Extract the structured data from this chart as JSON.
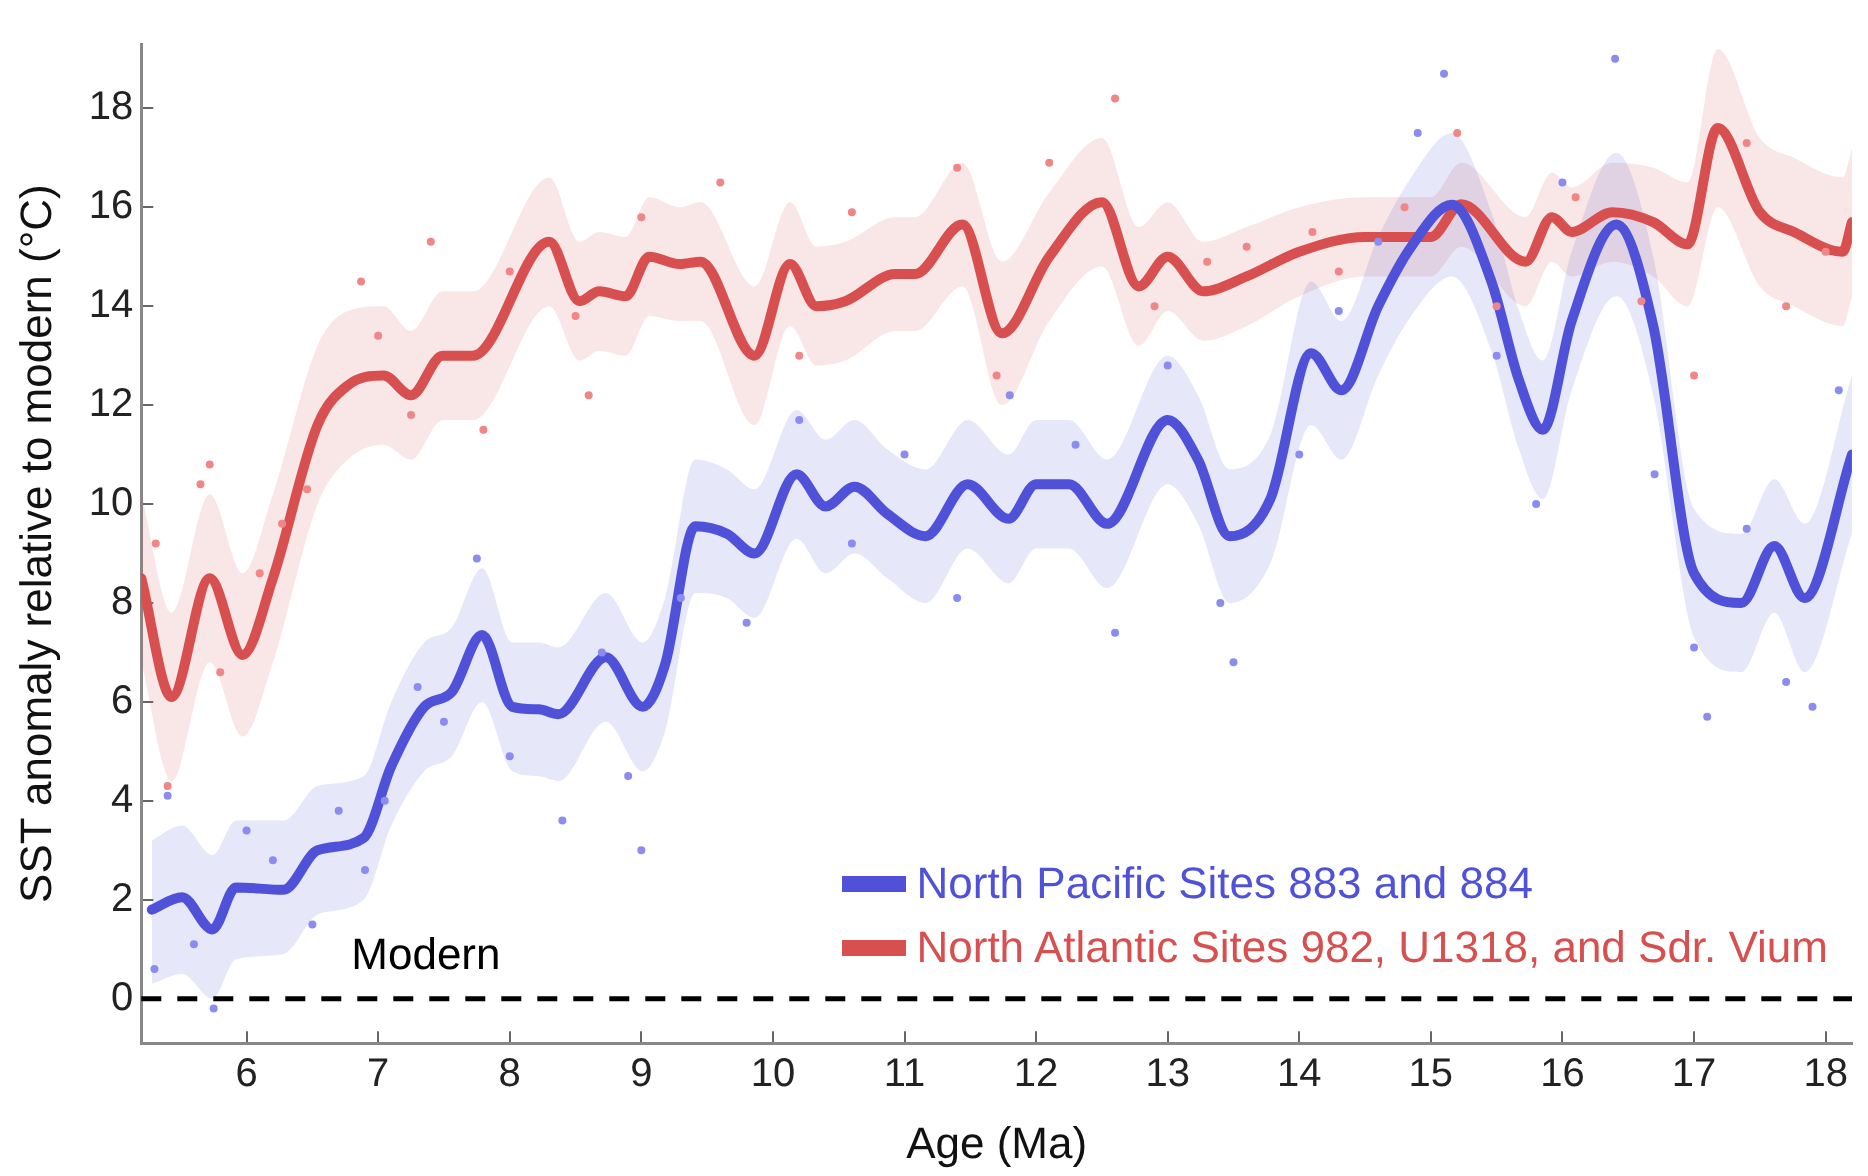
{
  "chart_data": {
    "type": "line",
    "xlabel": "Age (Ma)",
    "ylabel": "SST anomaly relative to modern (°C)",
    "xlim": [
      5.2,
      18.2
    ],
    "xticks": [
      6,
      7,
      8,
      9,
      10,
      11,
      12,
      13,
      14,
      15,
      16,
      17,
      18
    ],
    "ylim": [
      -0.9,
      19.3
    ],
    "yticks": [
      0,
      2,
      4,
      6,
      8,
      10,
      12,
      14,
      16,
      18
    ],
    "grid": false,
    "legend": "bottom right",
    "ref_lines": [
      {
        "axis": "y",
        "value": 0,
        "label": "Modern",
        "color": "#000000",
        "line_style": "dashed"
      }
    ],
    "series": [
      {
        "type": "scatter",
        "marker": "circle",
        "color": "#8a8cf2",
        "x": [
          5.3,
          5.4,
          5.6,
          5.75,
          6.0,
          6.2,
          6.5,
          6.7,
          6.9,
          7.05,
          7.3,
          7.5,
          7.75,
          8.0,
          8.4,
          8.7,
          8.9,
          9.0,
          9.3,
          9.8,
          10.2,
          10.6,
          11.0,
          11.4,
          11.8,
          12.3,
          12.6,
          13.0,
          13.4,
          13.5,
          14.0,
          14.3,
          14.6,
          14.9,
          15.1,
          15.5,
          15.8,
          16.0,
          16.4,
          16.7,
          17.0,
          17.1,
          17.4,
          17.7,
          17.9,
          18.1
        ],
        "values": [
          0.6,
          4.1,
          1.1,
          -0.2,
          3.4,
          2.8,
          1.5,
          3.8,
          2.6,
          4.0,
          6.3,
          5.6,
          8.9,
          4.9,
          3.6,
          7.0,
          4.5,
          3.0,
          8.1,
          7.6,
          11.7,
          9.2,
          11.0,
          8.1,
          12.2,
          11.2,
          7.4,
          12.8,
          8.0,
          6.8,
          11.0,
          13.9,
          15.3,
          17.5,
          18.7,
          13.0,
          10.0,
          16.5,
          19.0,
          10.6,
          7.1,
          5.7,
          9.5,
          6.4,
          5.9,
          12.3
        ]
      },
      {
        "type": "scatter",
        "marker": "circle",
        "color": "#f08686",
        "x": [
          5.31,
          5.4,
          5.65,
          5.72,
          5.8,
          6.1,
          6.27,
          6.46,
          6.87,
          7.0,
          7.25,
          7.4,
          7.8,
          8.0,
          8.5,
          8.6,
          9.0,
          9.6,
          10.2,
          10.6,
          11.4,
          11.7,
          12.1,
          12.6,
          12.9,
          13.3,
          13.6,
          14.1,
          14.3,
          14.8,
          15.2,
          15.5,
          16.1,
          16.6,
          17.0,
          17.4,
          17.7,
          18.0
        ],
        "values": [
          9.2,
          4.3,
          10.4,
          10.8,
          6.6,
          8.6,
          9.6,
          10.3,
          14.5,
          13.4,
          11.8,
          15.3,
          11.5,
          14.7,
          13.8,
          12.2,
          15.8,
          16.5,
          13.0,
          15.9,
          16.8,
          12.6,
          16.9,
          18.2,
          14.0,
          14.9,
          15.2,
          15.5,
          14.7,
          16.0,
          17.5,
          14.0,
          16.2,
          14.1,
          12.6,
          17.3,
          14.0,
          15.1
        ]
      },
      {
        "name": "North Pacific Sites 883 and 884",
        "marker": "none",
        "color": "#4f52d8",
        "x": [
          5.28,
          5.51,
          5.74,
          5.92,
          6.28,
          6.54,
          6.89,
          7.1,
          7.35,
          7.56,
          7.79,
          8.02,
          8.22,
          8.37,
          8.73,
          9.01,
          9.18,
          9.41,
          9.65,
          9.86,
          10.18,
          10.4,
          10.62,
          10.87,
          11.16,
          11.48,
          11.79,
          12.0,
          12.25,
          12.54,
          13.0,
          13.23,
          13.47,
          13.78,
          14.09,
          14.32,
          14.6,
          14.85,
          15.16,
          15.46,
          15.67,
          15.85,
          16.07,
          16.41,
          16.69,
          17.0,
          17.36,
          17.61,
          17.84,
          18.2
        ],
        "values": [
          1.8,
          2.05,
          1.4,
          2.25,
          2.2,
          3.0,
          3.25,
          4.7,
          5.9,
          6.2,
          7.35,
          5.9,
          5.85,
          5.75,
          6.9,
          5.9,
          6.75,
          9.55,
          9.4,
          9.0,
          10.6,
          9.95,
          10.35,
          9.8,
          9.35,
          10.4,
          9.7,
          10.4,
          10.4,
          9.6,
          11.7,
          10.9,
          9.35,
          10.1,
          13.05,
          12.3,
          14.0,
          15.2,
          16.05,
          14.5,
          12.5,
          11.5,
          13.7,
          15.65,
          13.6,
          8.6,
          8.0,
          9.15,
          8.1,
          11.0
        ],
        "lower": [
          0.3,
          0.5,
          0.0,
          0.8,
          0.9,
          1.7,
          2.0,
          3.5,
          4.6,
          4.9,
          6.0,
          4.6,
          4.5,
          4.4,
          5.6,
          4.6,
          5.4,
          8.2,
          8.1,
          7.7,
          9.3,
          8.6,
          9.0,
          8.5,
          8.0,
          9.1,
          8.4,
          9.1,
          9.1,
          8.3,
          10.4,
          9.6,
          8.0,
          8.8,
          11.6,
          10.9,
          12.6,
          13.8,
          14.6,
          13.1,
          11.1,
          10.1,
          12.3,
          14.2,
          12.2,
          7.3,
          6.6,
          7.8,
          6.6,
          9.4
        ],
        "upper": [
          3.2,
          3.5,
          2.9,
          3.6,
          3.6,
          4.3,
          4.5,
          6.0,
          7.2,
          7.5,
          8.7,
          7.2,
          7.2,
          7.1,
          8.2,
          7.2,
          8.1,
          10.9,
          10.7,
          10.3,
          11.9,
          11.3,
          11.7,
          11.1,
          10.7,
          11.7,
          11.0,
          11.7,
          11.7,
          10.9,
          13.0,
          12.2,
          10.7,
          11.4,
          14.5,
          13.7,
          15.4,
          16.6,
          17.5,
          15.9,
          13.9,
          12.9,
          15.1,
          17.1,
          15.0,
          9.9,
          9.4,
          10.5,
          9.6,
          12.6
        ]
      },
      {
        "name": "North Atlantic Sites 982, U1318, and Sdr. Vium",
        "marker": "none",
        "color": "#d84f4f",
        "x": [
          5.2,
          5.43,
          5.72,
          5.97,
          6.2,
          6.54,
          6.77,
          7.04,
          7.25,
          7.49,
          7.72,
          8.3,
          8.53,
          8.68,
          8.88,
          9.06,
          9.29,
          9.45,
          9.86,
          10.13,
          10.33,
          10.55,
          10.93,
          11.08,
          11.44,
          11.74,
          12.1,
          12.5,
          12.78,
          13.0,
          13.27,
          13.6,
          14.0,
          14.5,
          15.0,
          15.23,
          15.72,
          15.92,
          16.07,
          16.38,
          16.69,
          16.95,
          17.18,
          17.5,
          17.76,
          18.13,
          18.2
        ],
        "values": [
          8.5,
          6.1,
          8.5,
          6.95,
          8.5,
          11.6,
          12.4,
          12.6,
          12.2,
          13.0,
          13.0,
          15.3,
          14.1,
          14.3,
          14.2,
          15.0,
          14.85,
          14.9,
          13.0,
          14.85,
          14.0,
          14.1,
          14.65,
          14.65,
          15.65,
          13.45,
          15.0,
          16.1,
          14.4,
          15.0,
          14.3,
          14.6,
          15.1,
          15.4,
          15.4,
          16.06,
          14.9,
          15.8,
          15.5,
          15.9,
          15.7,
          15.25,
          17.6,
          15.9,
          15.5,
          15.1,
          15.7
        ],
        "lower": [
          6.8,
          4.4,
          6.8,
          5.3,
          6.8,
          10.0,
          10.9,
          11.2,
          10.9,
          11.7,
          11.7,
          14.0,
          12.9,
          13.1,
          13.0,
          13.8,
          13.7,
          13.7,
          11.6,
          13.6,
          12.8,
          12.9,
          13.5,
          13.5,
          14.4,
          12.0,
          13.7,
          14.8,
          13.2,
          13.9,
          13.3,
          13.6,
          14.2,
          14.6,
          14.6,
          15.2,
          14.0,
          14.9,
          14.6,
          14.9,
          14.6,
          14.0,
          16.0,
          14.4,
          14.0,
          13.6,
          14.2
        ],
        "upper": [
          10.2,
          7.8,
          10.2,
          8.6,
          10.2,
          13.2,
          13.9,
          14.0,
          13.5,
          14.3,
          14.3,
          16.6,
          15.3,
          15.5,
          15.4,
          16.2,
          16.0,
          16.1,
          14.4,
          16.1,
          15.2,
          15.3,
          15.8,
          15.8,
          16.9,
          14.9,
          16.3,
          17.4,
          15.6,
          16.1,
          15.3,
          15.6,
          16.0,
          16.2,
          16.2,
          16.9,
          15.8,
          16.7,
          16.4,
          16.9,
          16.8,
          16.5,
          19.2,
          17.4,
          17.0,
          16.6,
          17.2
        ]
      }
    ]
  }
}
